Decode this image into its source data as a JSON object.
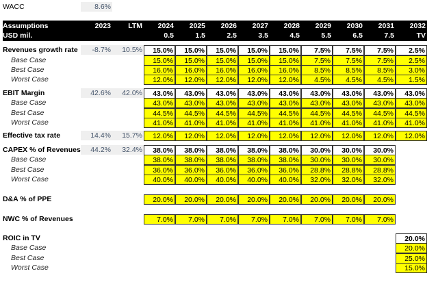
{
  "wacc": {
    "label": "WACC",
    "value": "8.6%"
  },
  "header": {
    "title": "Assumptions",
    "units": "USD mil.",
    "years": [
      "2023",
      "LTM",
      "2024",
      "2025",
      "2026",
      "2027",
      "2028",
      "2029",
      "2030",
      "2031",
      "2032"
    ],
    "periods": [
      "",
      "",
      "0.5",
      "1.5",
      "2.5",
      "3.5",
      "4.5",
      "5.5",
      "6.5",
      "7.5",
      "TV"
    ]
  },
  "rows": [
    {
      "label": "Revenues growth rate",
      "kind": "main",
      "hist": [
        "-8.7%",
        "10.5%"
      ],
      "start": 0,
      "values": [
        "15.0%",
        "15.0%",
        "15.0%",
        "15.0%",
        "15.0%",
        "7.5%",
        "7.5%",
        "7.5%",
        "2.5%"
      ]
    },
    {
      "label": "Base Case",
      "kind": "case",
      "start": 0,
      "values": [
        "15.0%",
        "15.0%",
        "15.0%",
        "15.0%",
        "15.0%",
        "7.5%",
        "7.5%",
        "7.5%",
        "2.5%"
      ]
    },
    {
      "label": "Best Case",
      "kind": "case",
      "start": 0,
      "values": [
        "16.0%",
        "16.0%",
        "16.0%",
        "16.0%",
        "16.0%",
        "8.5%",
        "8.5%",
        "8.5%",
        "3.0%"
      ]
    },
    {
      "label": "Worst Case",
      "kind": "case",
      "start": 0,
      "values": [
        "12.0%",
        "12.0%",
        "12.0%",
        "12.0%",
        "12.0%",
        "4.5%",
        "4.5%",
        "4.5%",
        "1.5%"
      ]
    },
    {
      "label": "EBIT Margin",
      "kind": "main",
      "hist": [
        "42.6%",
        "42.0%"
      ],
      "start": 0,
      "values": [
        "43.0%",
        "43.0%",
        "43.0%",
        "43.0%",
        "43.0%",
        "43.0%",
        "43.0%",
        "43.0%",
        "43.0%"
      ]
    },
    {
      "label": "Base Case",
      "kind": "case",
      "start": 0,
      "values": [
        "43.0%",
        "43.0%",
        "43.0%",
        "43.0%",
        "43.0%",
        "43.0%",
        "43.0%",
        "43.0%",
        "43.0%"
      ]
    },
    {
      "label": "Best Case",
      "kind": "case",
      "start": 0,
      "values": [
        "44.5%",
        "44.5%",
        "44.5%",
        "44.5%",
        "44.5%",
        "44.5%",
        "44.5%",
        "44.5%",
        "44.5%"
      ]
    },
    {
      "label": "Worst Case",
      "kind": "case",
      "start": 0,
      "values": [
        "41.0%",
        "41.0%",
        "41.0%",
        "41.0%",
        "41.0%",
        "41.0%",
        "41.0%",
        "41.0%",
        "41.0%"
      ]
    },
    {
      "label": "Effective tax rate",
      "kind": "input",
      "hist": [
        "14.4%",
        "15.7%"
      ],
      "start": 0,
      "values": [
        "12.0%",
        "12.0%",
        "12.0%",
        "12.0%",
        "12.0%",
        "12.0%",
        "12.0%",
        "12.0%",
        "12.0%"
      ]
    },
    {
      "label": "CAPEX % of Revenues",
      "kind": "main",
      "hist": [
        "44.2%",
        "32.4%"
      ],
      "start": 0,
      "values": [
        "38.0%",
        "38.0%",
        "38.0%",
        "38.0%",
        "38.0%",
        "30.0%",
        "30.0%",
        "30.0%"
      ]
    },
    {
      "label": "Base Case",
      "kind": "case",
      "start": 0,
      "values": [
        "38.0%",
        "38.0%",
        "38.0%",
        "38.0%",
        "38.0%",
        "30.0%",
        "30.0%",
        "30.0%"
      ]
    },
    {
      "label": "Best Case",
      "kind": "case",
      "start": 0,
      "values": [
        "36.0%",
        "36.0%",
        "36.0%",
        "36.0%",
        "36.0%",
        "28.8%",
        "28.8%",
        "28.8%"
      ]
    },
    {
      "label": "Worst Case",
      "kind": "case",
      "start": 0,
      "values": [
        "40.0%",
        "40.0%",
        "40.0%",
        "40.0%",
        "40.0%",
        "32.0%",
        "32.0%",
        "32.0%"
      ]
    },
    {
      "label": "D&A % of PPE",
      "kind": "input",
      "start": 0,
      "values": [
        "20.0%",
        "20.0%",
        "20.0%",
        "20.0%",
        "20.0%",
        "20.0%",
        "20.0%",
        "20.0%"
      ]
    },
    {
      "label": "NWC % of Revenues",
      "kind": "input",
      "start": 0,
      "values": [
        "7.0%",
        "7.0%",
        "7.0%",
        "7.0%",
        "7.0%",
        "7.0%",
        "7.0%",
        "7.0%"
      ]
    },
    {
      "label": "ROIC in TV",
      "kind": "main",
      "start": 8,
      "values": [
        "20.0%"
      ]
    },
    {
      "label": "Base Case",
      "kind": "case",
      "start": 8,
      "values": [
        "20.0%"
      ]
    },
    {
      "label": "Best Case",
      "kind": "case",
      "start": 8,
      "values": [
        "25.0%"
      ]
    },
    {
      "label": "Worst Case",
      "kind": "case",
      "start": 8,
      "values": [
        "15.0%"
      ]
    }
  ]
}
